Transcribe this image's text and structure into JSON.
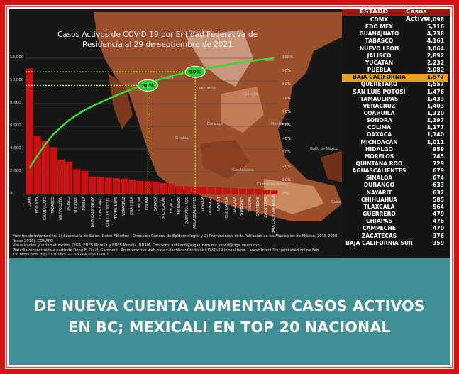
{
  "chart_title_line1": "Casos Activos de COVID 19 por Entidad Federativa de",
  "chart_title_line2": "Residencia al 29 de septiembre de 2021",
  "table_header": {
    "state": "ESTADO",
    "cases": "Casos Activo"
  },
  "table_rows": [
    {
      "state": "CDMX",
      "value": "11,098"
    },
    {
      "state": "EDO MEX",
      "value": "5,116"
    },
    {
      "state": "GUANAJUATO",
      "value": "4,738"
    },
    {
      "state": "TABASCO",
      "value": "4,161"
    },
    {
      "state": "NUEVO LEÓN",
      "value": "3,064"
    },
    {
      "state": "JALISCO",
      "value": "2,892"
    },
    {
      "state": "YUCATÁN",
      "value": "2,232"
    },
    {
      "state": "PUEBLA",
      "value": "2,082"
    },
    {
      "state": "BAJA CALIFORNIA",
      "value": "1,577"
    },
    {
      "state": "QUERÉTARO",
      "value": "1,557"
    },
    {
      "state": "SAN LUIS POTOSÍ",
      "value": "1,476"
    },
    {
      "state": "TAMAULIPAS",
      "value": "1,433"
    },
    {
      "state": "VERACRUZ",
      "value": "1,403"
    },
    {
      "state": "COAHUILA",
      "value": "1,320"
    },
    {
      "state": "SONORA",
      "value": "1,197"
    },
    {
      "state": "COLIMA",
      "value": "1,177"
    },
    {
      "state": "OAXACA",
      "value": "1,140"
    },
    {
      "state": "MICHOACÁN",
      "value": "1,011"
    },
    {
      "state": "HIDALGO",
      "value": "959"
    },
    {
      "state": "MORELOS",
      "value": "745"
    },
    {
      "state": "QUINTANA ROO",
      "value": "729"
    },
    {
      "state": "AGUASCALIENTES",
      "value": "679"
    },
    {
      "state": "SINALOA",
      "value": "674"
    },
    {
      "state": "DURANGO",
      "value": "633"
    },
    {
      "state": "NAYARIT",
      "value": "632"
    },
    {
      "state": "CHIHUAHUA",
      "value": "585"
    },
    {
      "state": "TLAXCALA",
      "value": "564"
    },
    {
      "state": "GUERRERO",
      "value": "479"
    },
    {
      "state": "CHIAPAS",
      "value": "476"
    },
    {
      "state": "CAMPECHE",
      "value": "470"
    },
    {
      "state": "ZACATECAS",
      "value": "376"
    },
    {
      "state": "BAJA CALIFORNIA SUR",
      "value": "359"
    }
  ],
  "highlight_state": "BAJA CALIFORNIA",
  "chart_data": {
    "type": "bar",
    "categories": [
      "CDMX",
      "EDO MEX",
      "GUANAJUATO",
      "TABASCO",
      "NUEVO LEÓN",
      "JALISCO",
      "YUCATÁN",
      "PUEBLA",
      "BAJA CALIFORNIA",
      "QUERÉTARO",
      "SAN LUIS POTOSÍ",
      "TAMAULIPAS",
      "VERACRUZ",
      "COAHUILA",
      "SONORA",
      "COLIMA",
      "OAXACA",
      "MICHOACÁN",
      "HIDALGO",
      "MORELOS",
      "QUINTANA ROO",
      "AGUASCALIENTES",
      "SINALOA",
      "DURANGO",
      "NAYARIT",
      "CHIHUAHUA",
      "TLAXCALA",
      "GUERRERO",
      "CHIAPAS",
      "CAMPECHE",
      "ZACATECAS",
      "BAJA CALIFORNIA SUR"
    ],
    "values": [
      11098,
      5116,
      4738,
      4161,
      3064,
      2892,
      2232,
      2082,
      1577,
      1557,
      1476,
      1433,
      1403,
      1320,
      1197,
      1177,
      1140,
      1011,
      959,
      745,
      729,
      679,
      674,
      633,
      632,
      585,
      564,
      479,
      476,
      470,
      376,
      359
    ],
    "ylim": [
      0,
      12000
    ],
    "y2lim": [
      0,
      100
    ],
    "y_ticks": [
      "12,000",
      "10,000",
      "8,000",
      "6,000",
      "4,000",
      "2,000",
      "0"
    ],
    "y2_ticks": [
      "100%",
      "90%",
      "80%",
      "70%",
      "60%",
      "50%",
      "40%",
      "30%",
      "20%",
      "10%",
      "0%"
    ],
    "markers": [
      "80%",
      "90%"
    ],
    "bar_color": "#cc1111",
    "line_color": "#33dd33"
  },
  "map_labels": [
    "Arizona",
    "Nuevo México",
    "Texas",
    "Chihuahua",
    "Sonora",
    "Coahuila",
    "Durango",
    "Sinaloa",
    "Guadalajara",
    "Monterrey",
    "Ciudad de México",
    "Golfo de México",
    "Cuba"
  ],
  "footnote": {
    "line1": "Fuentes de Información: 1) Secretaría de Salud: Datos Abiertos - Dirección General de Epidemiología, y 2) Proyecciones de la Población de los Municipios de México, 2015-2030 (base 2016), CONAPO.",
    "line2": "Visualización y automatización: CIGA, ENES Morelia y ENES Morelia, UNAM. Contacto: acbilenti@ciga.unam.mx, covid@ciga.unam.mx",
    "line3": "Plantilla reconstruida a partir de Dong E, Du H, Gardner L. An interactive web-based dashboard to track COVID-19 in real time. Lancet Infect Dis; published online Feb",
    "line4": "19. https://doi.org/10.1016/S1473-3099(20)30120-1"
  },
  "headline_line1": "DE NUEVA CUENTA AUMENTAN CASOS ACTIVOS",
  "headline_line2": "EN BC; MEXICALI EN TOP 20 NACIONAL",
  "colors": {
    "frame": "#d41414",
    "banner": "#3f8f95",
    "highlight": "#e8a21a",
    "map": "#b5633a"
  }
}
